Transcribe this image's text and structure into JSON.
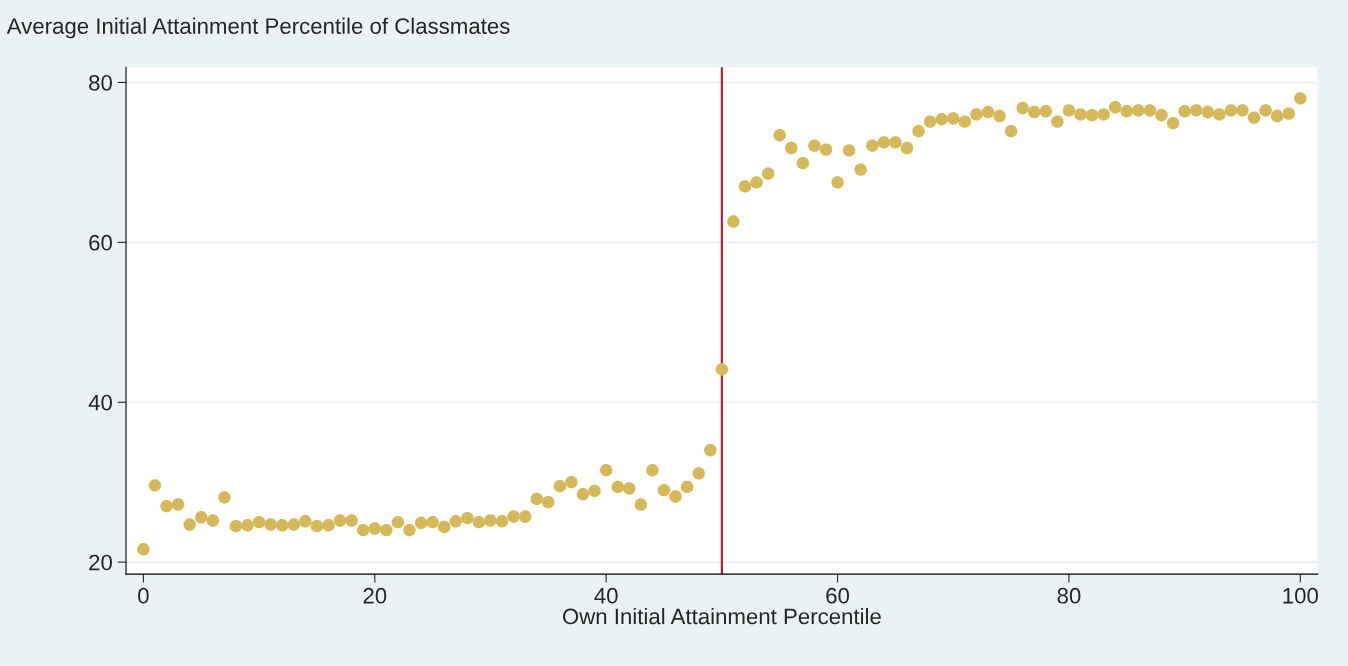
{
  "chart_data": {
    "type": "scatter",
    "ylabel": "Average Initial Attainment Percentile of Classmates",
    "xlabel": "Own Initial Attainment Percentile",
    "x": [
      0,
      1,
      2,
      3,
      4,
      5,
      6,
      7,
      8,
      9,
      10,
      11,
      12,
      13,
      14,
      15,
      16,
      17,
      18,
      19,
      20,
      21,
      22,
      23,
      24,
      25,
      26,
      27,
      28,
      29,
      30,
      31,
      32,
      33,
      34,
      35,
      36,
      37,
      38,
      39,
      40,
      41,
      42,
      43,
      44,
      45,
      46,
      47,
      48,
      49,
      50,
      51,
      52,
      53,
      54,
      55,
      56,
      57,
      58,
      59,
      60,
      61,
      62,
      63,
      64,
      65,
      66,
      67,
      68,
      69,
      70,
      71,
      72,
      73,
      74,
      75,
      76,
      77,
      78,
      79,
      80,
      81,
      82,
      83,
      84,
      85,
      86,
      87,
      88,
      89,
      90,
      91,
      92,
      93,
      94,
      95,
      96,
      97,
      98,
      99,
      100
    ],
    "series": [
      {
        "color": "#d4b85a",
        "values": [
          21.6,
          29.6,
          27.0,
          27.2,
          24.7,
          25.6,
          25.2,
          28.1,
          24.5,
          24.6,
          25.0,
          24.7,
          24.6,
          24.7,
          25.1,
          24.5,
          24.6,
          25.2,
          25.2,
          24.0,
          24.2,
          24.0,
          25.0,
          24.0,
          24.9,
          25.0,
          24.4,
          25.1,
          25.5,
          25.0,
          25.2,
          25.1,
          25.7,
          25.7,
          27.9,
          27.5,
          29.5,
          30.0,
          28.5,
          28.9,
          31.5,
          29.4,
          29.2,
          27.2,
          31.5,
          29.0,
          28.2,
          29.4,
          31.1,
          34.0,
          44.1,
          62.6,
          67.0,
          67.5,
          68.6,
          73.4,
          71.8,
          69.9,
          72.1,
          71.6,
          67.5,
          71.5,
          69.1,
          72.1,
          72.5,
          72.5,
          71.8,
          73.9,
          75.1,
          75.4,
          75.5,
          75.1,
          76.0,
          76.3,
          75.8,
          73.9,
          76.8,
          76.3,
          76.4,
          75.1,
          76.5,
          76.0,
          75.9,
          76.0,
          76.9,
          76.4,
          76.5,
          76.5,
          75.9,
          74.9,
          76.4,
          76.5,
          76.3,
          76.0,
          76.5,
          76.5,
          75.6,
          76.5,
          75.8,
          76.1,
          78.0
        ]
      }
    ],
    "xlim": [
      -1.5,
      101.5
    ],
    "ylim": [
      18.5,
      81.9
    ],
    "xticks": [
      0,
      20,
      40,
      60,
      80,
      100
    ],
    "yticks": [
      20,
      40,
      60,
      80
    ],
    "ref_lines": [
      {
        "axis": "x",
        "value": 50,
        "color": "#c0102a"
      }
    ],
    "grid": "y",
    "marker": "circle"
  }
}
